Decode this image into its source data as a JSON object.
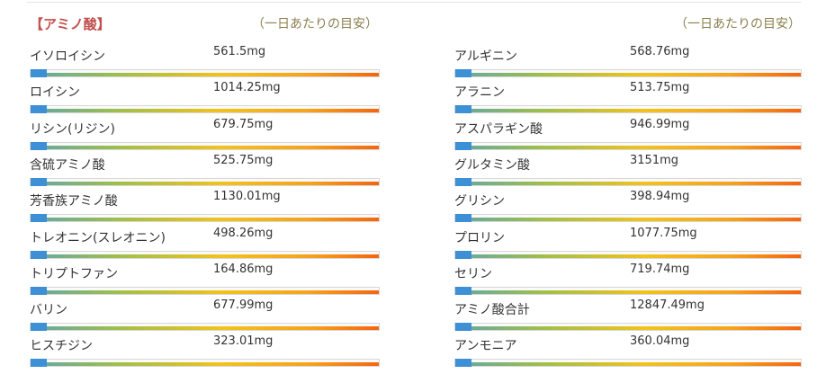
{
  "title": "【アミノ酸】",
  "columns": [
    {
      "note": "（一日あたりの目安）",
      "items": [
        {
          "name": "イソロイシン",
          "amount": "561.5mg"
        },
        {
          "name": "ロイシン",
          "amount": "1014.25mg"
        },
        {
          "name": "リシン(リジン)",
          "amount": "679.75mg"
        },
        {
          "name": "含硫アミノ酸",
          "amount": "525.75mg"
        },
        {
          "name": "芳香族アミノ酸",
          "amount": "1130.01mg"
        },
        {
          "name": "トレオニン(スレオニン)",
          "amount": "498.26mg"
        },
        {
          "name": "トリプトファン",
          "amount": "164.86mg"
        },
        {
          "name": "バリン",
          "amount": "677.99mg"
        },
        {
          "name": "ヒスチジン",
          "amount": "323.01mg"
        }
      ]
    },
    {
      "note": "（一日あたりの目安）",
      "items": [
        {
          "name": "アルギニン",
          "amount": "568.76mg"
        },
        {
          "name": "アラニン",
          "amount": "513.75mg"
        },
        {
          "name": "アスパラギン酸",
          "amount": "946.99mg"
        },
        {
          "name": "グルタミン酸",
          "amount": "3151mg"
        },
        {
          "name": "グリシン",
          "amount": "398.94mg"
        },
        {
          "name": "プロリン",
          "amount": "1077.75mg"
        },
        {
          "name": "セリン",
          "amount": "719.74mg"
        },
        {
          "name": "アミノ酸合計",
          "amount": "12847.49mg"
        },
        {
          "name": "アンモニア",
          "amount": "360.04mg"
        }
      ]
    }
  ]
}
